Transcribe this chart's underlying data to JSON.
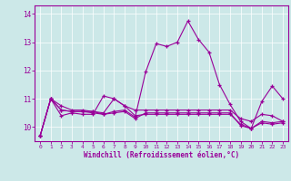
{
  "xlabel": "Windchill (Refroidissement éolien,°C)",
  "background_color": "#cce8e8",
  "line_color": "#990099",
  "xlim": [
    -0.5,
    23.5
  ],
  "ylim": [
    9.5,
    14.3
  ],
  "yticks": [
    10,
    11,
    12,
    13,
    14
  ],
  "xticks": [
    0,
    1,
    2,
    3,
    4,
    5,
    6,
    7,
    8,
    9,
    10,
    11,
    12,
    13,
    14,
    15,
    16,
    17,
    18,
    19,
    20,
    21,
    22,
    23
  ],
  "series": [
    [
      9.7,
      11.0,
      10.4,
      10.5,
      10.45,
      10.45,
      11.1,
      11.0,
      10.75,
      10.4,
      10.45,
      10.45,
      10.45,
      10.45,
      10.45,
      10.45,
      10.45,
      10.45,
      10.45,
      10.1,
      9.95,
      10.2,
      10.15,
      10.2
    ],
    [
      9.7,
      11.0,
      10.75,
      10.6,
      10.6,
      10.55,
      10.5,
      11.0,
      10.75,
      10.6,
      10.6,
      10.6,
      10.6,
      10.6,
      10.6,
      10.6,
      10.6,
      10.6,
      10.6,
      10.3,
      10.2,
      10.45,
      10.4,
      10.2
    ],
    [
      9.7,
      11.0,
      10.6,
      10.55,
      10.55,
      10.55,
      10.45,
      10.55,
      10.6,
      10.35,
      11.95,
      12.95,
      12.85,
      13.0,
      13.75,
      13.1,
      12.65,
      11.5,
      10.8,
      10.2,
      9.95,
      10.9,
      11.45,
      11.0
    ],
    [
      9.7,
      11.0,
      10.6,
      10.55,
      10.55,
      10.5,
      10.45,
      10.5,
      10.55,
      10.3,
      10.5,
      10.5,
      10.5,
      10.5,
      10.5,
      10.5,
      10.5,
      10.5,
      10.5,
      10.05,
      9.95,
      10.15,
      10.1,
      10.15
    ]
  ]
}
